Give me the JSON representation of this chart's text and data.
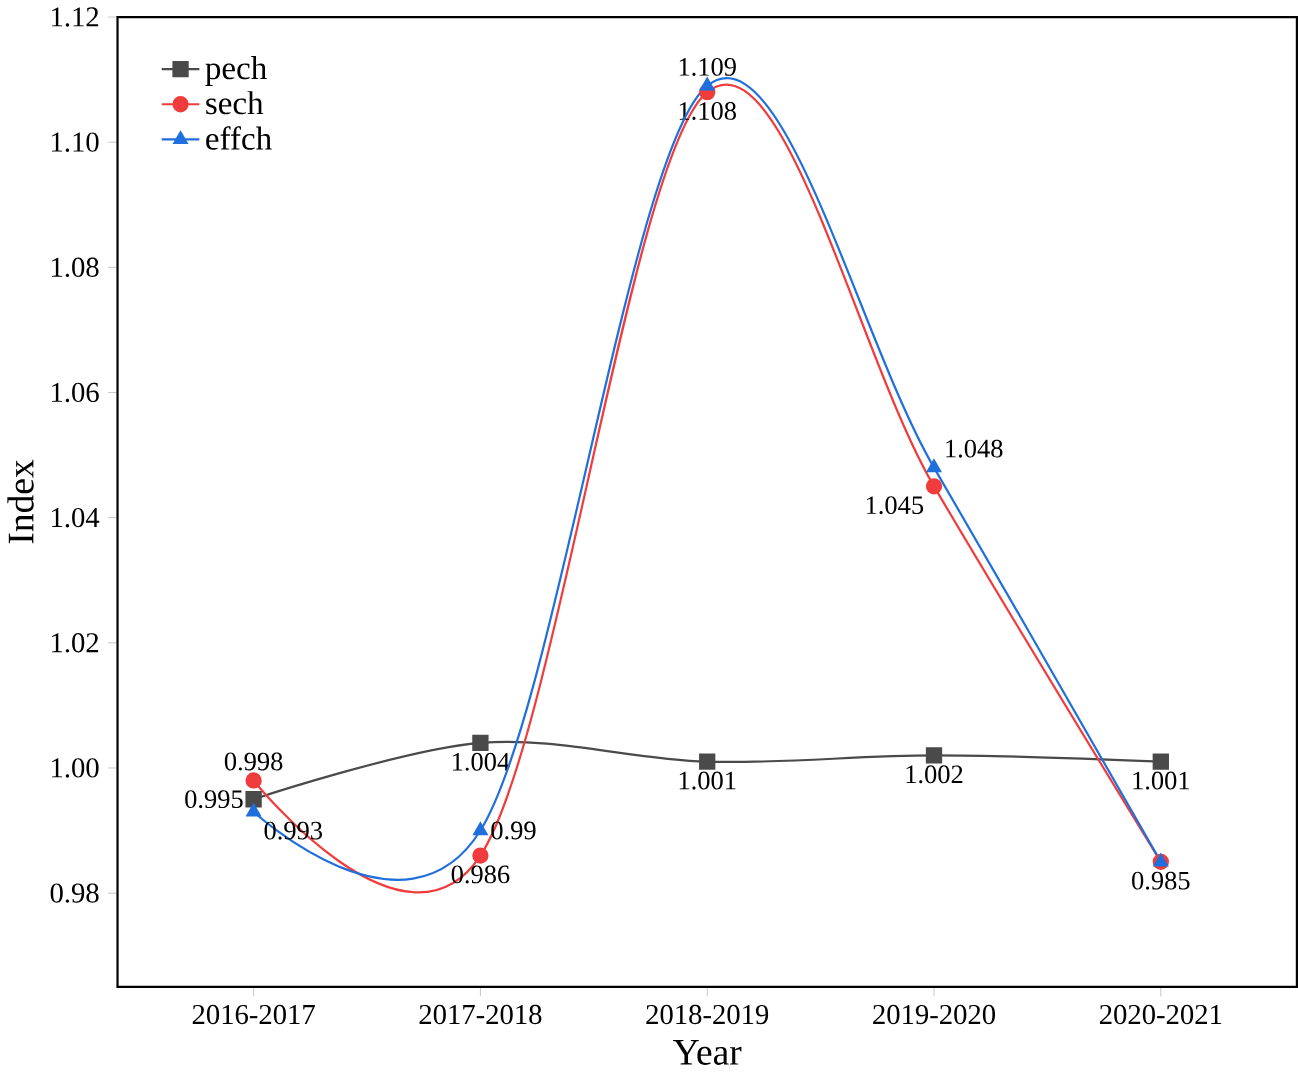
{
  "chart_data": {
    "type": "line",
    "xlabel": "Year",
    "ylabel": "Index",
    "categories": [
      "2016-2017",
      "2017-2018",
      "2018-2019",
      "2019-2020",
      "2020-2021"
    ],
    "series": [
      {
        "name": "pech",
        "color": "#4a4a4a",
        "marker": "square",
        "values": [
          0.995,
          1.004,
          1.001,
          1.002,
          1.001
        ],
        "value_labels": [
          "0.995",
          "1.004",
          "1.001",
          "1.002",
          "1.001"
        ]
      },
      {
        "name": "sech",
        "color": "#f03c3c",
        "marker": "circle",
        "values": [
          0.998,
          0.986,
          1.108,
          1.045,
          0.985
        ],
        "value_labels": [
          "0.998",
          "0.986",
          "1.108",
          "1.045",
          null
        ]
      },
      {
        "name": "effch",
        "color": "#1f6fdc",
        "marker": "triangle",
        "values": [
          0.993,
          0.99,
          1.109,
          1.048,
          0.985
        ],
        "value_labels": [
          "0.993",
          "0.99",
          "1.109",
          "1.048",
          "0.985"
        ]
      }
    ],
    "ylim": [
      0.965,
      1.12
    ],
    "yticks": [
      0.98,
      {
        "value": 1.0,
        "label": "1.00"
      },
      1.02,
      1.04,
      1.06,
      1.08,
      {
        "value": 1.1,
        "label": "1.10"
      },
      1.12
    ],
    "legend": "top left",
    "grid": false,
    "line_style": "solid"
  }
}
